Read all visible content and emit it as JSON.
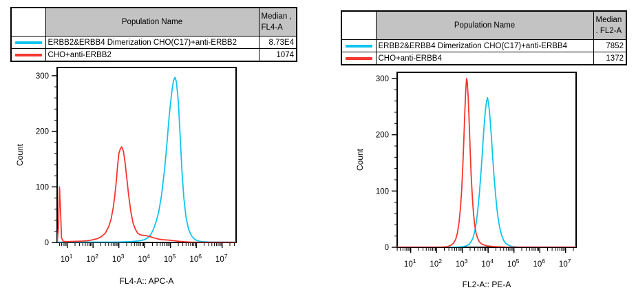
{
  "colors": {
    "cyan": "#0FC5F0",
    "red": "#F5372E",
    "table_header_bg": "#C3C3C3",
    "axis": "#000000"
  },
  "panels": [
    {
      "legend": {
        "header_name": "Population Name",
        "header_median_line1": "Median ,",
        "header_median_line2": "FL4-A",
        "rows": [
          {
            "color": "#0FC5F0",
            "name": "ERBB2&ERBB4 Dimerization CHO(C17)+anti-ERBB2",
            "median": "8.73E4"
          },
          {
            "color": "#F5372E",
            "name": "CHO+anti-ERBB2",
            "median": "1074"
          }
        ]
      }
    },
    {
      "legend": {
        "header_name": "Population Name",
        "header_median_line1": "Median",
        "header_median_line2": ". FL2-A",
        "rows": [
          {
            "color": "#0FC5F0",
            "name": "ERBB2&ERBB4 Dimerization CHO(C17)+anti-ERBB4",
            "median": "7852"
          },
          {
            "color": "#F5372E",
            "name": "CHO+anti-ERBB4",
            "median": "1372"
          }
        ]
      }
    }
  ],
  "chart_data": [
    {
      "type": "line",
      "title": "",
      "xlabel": "FL4-A:: APC-A",
      "ylabel": "Count",
      "x_scale": "log",
      "xlog_range": [
        0.61,
        7.54
      ],
      "ylim": [
        0,
        300
      ],
      "y_ticks": [
        0,
        100,
        200,
        300
      ],
      "y_minor_step": 20,
      "x_major_exponents": [
        1,
        2,
        3,
        4,
        5,
        6,
        7
      ],
      "grid": false,
      "legend_position": "table-above",
      "series": [
        {
          "name": "ERBB2&ERBB4 Dimerization CHO(C17)+anti-ERBB2",
          "data_name": "cyan-dimerization-curve",
          "color": "#0FC5F0",
          "median": "8.73E4",
          "points": [
            [
              4.1,
              0.5
            ],
            [
              1000,
              0.8
            ],
            [
              3000,
              1.5
            ],
            [
              6000,
              3
            ],
            [
              10000,
              5
            ],
            [
              14000,
              9
            ],
            [
              18000,
              16
            ],
            [
              22000,
              24
            ],
            [
              28000,
              38
            ],
            [
              35000,
              55
            ],
            [
              45000,
              85
            ],
            [
              60000,
              135
            ],
            [
              75000,
              185
            ],
            [
              90000,
              230
            ],
            [
              110000,
              268
            ],
            [
              130000,
              291
            ],
            [
              150000,
              297
            ],
            [
              170000,
              289
            ],
            [
              200000,
              255
            ],
            [
              240000,
              185
            ],
            [
              280000,
              125
            ],
            [
              330000,
              80
            ],
            [
              400000,
              45
            ],
            [
              500000,
              24
            ],
            [
              650000,
              12
            ],
            [
              850000,
              6
            ],
            [
              1100000,
              3
            ],
            [
              1600000,
              1.5
            ],
            [
              3000000,
              0.8
            ],
            [
              34000000,
              0.5
            ]
          ]
        },
        {
          "name": "CHO+anti-ERBB2",
          "data_name": "red-control-curve",
          "color": "#F5372E",
          "median": "1074",
          "points": [
            [
              4.1,
              1
            ],
            [
              4.6,
              30
            ],
            [
              5.0,
              100
            ],
            [
              5.5,
              55
            ],
            [
              6.0,
              8
            ],
            [
              7,
              2
            ],
            [
              10,
              1.5
            ],
            [
              20,
              2
            ],
            [
              40,
              2.5
            ],
            [
              70,
              3.5
            ],
            [
              100,
              5
            ],
            [
              150,
              7
            ],
            [
              220,
              11
            ],
            [
              300,
              17
            ],
            [
              400,
              28
            ],
            [
              500,
              42
            ],
            [
              600,
              62
            ],
            [
              700,
              85
            ],
            [
              800,
              112
            ],
            [
              900,
              140
            ],
            [
              1000,
              160
            ],
            [
              1150,
              169
            ],
            [
              1300,
              172
            ],
            [
              1500,
              164
            ],
            [
              1700,
              148
            ],
            [
              2000,
              118
            ],
            [
              2400,
              84
            ],
            [
              2900,
              56
            ],
            [
              3500,
              36
            ],
            [
              4300,
              24
            ],
            [
              5300,
              17
            ],
            [
              6500,
              14
            ],
            [
              8000,
              13
            ],
            [
              10000,
              12.5
            ],
            [
              13000,
              11.5
            ],
            [
              16000,
              10.5
            ],
            [
              20000,
              9
            ],
            [
              26000,
              7.5
            ],
            [
              35000,
              6
            ],
            [
              50000,
              5
            ],
            [
              70000,
              4.5
            ],
            [
              100000,
              4
            ],
            [
              150000,
              3
            ],
            [
              220000,
              2
            ],
            [
              350000,
              1.2
            ],
            [
              600000,
              0.6
            ],
            [
              1200000,
              0.3
            ],
            [
              34000000,
              0.2
            ]
          ]
        }
      ]
    },
    {
      "type": "line",
      "title": "",
      "xlabel": "FL2-A:: PE-A",
      "ylabel": "Count",
      "x_scale": "log",
      "xlog_range": [
        0.475,
        7.41
      ],
      "ylim": [
        0,
        300
      ],
      "y_ticks": [
        0,
        100,
        200,
        300
      ],
      "y_minor_step": 20,
      "x_major_exponents": [
        1,
        2,
        3,
        4,
        5,
        6,
        7
      ],
      "grid": false,
      "legend_position": "table-above",
      "series": [
        {
          "name": "ERBB2&ERBB4 Dimerization CHO(C17)+anti-ERBB4",
          "data_name": "cyan-dimerization-curve",
          "color": "#0FC5F0",
          "median": "7852",
          "points": [
            [
              3,
              0.2
            ],
            [
              600,
              0.3
            ],
            [
              1000,
              1
            ],
            [
              1400,
              2.5
            ],
            [
              1800,
              5
            ],
            [
              2200,
              10
            ],
            [
              2600,
              17
            ],
            [
              3000,
              28
            ],
            [
              3500,
              45
            ],
            [
              4000,
              68
            ],
            [
              4600,
              98
            ],
            [
              5200,
              130
            ],
            [
              5900,
              165
            ],
            [
              6600,
              200
            ],
            [
              7300,
              228
            ],
            [
              8000,
              248
            ],
            [
              8700,
              260
            ],
            [
              9400,
              266
            ],
            [
              10200,
              258
            ],
            [
              11000,
              245
            ],
            [
              12000,
              225
            ],
            [
              13500,
              193
            ],
            [
              15000,
              160
            ],
            [
              17000,
              125
            ],
            [
              19500,
              92
            ],
            [
              22000,
              68
            ],
            [
              25000,
              48
            ],
            [
              29000,
              32
            ],
            [
              34000,
              20
            ],
            [
              40000,
              12
            ],
            [
              48000,
              7
            ],
            [
              60000,
              4
            ],
            [
              75000,
              2
            ],
            [
              100000,
              1
            ],
            [
              150000,
              0.5
            ],
            [
              26000000,
              0.2
            ]
          ]
        },
        {
          "name": "CHO+anti-ERBB4",
          "data_name": "red-control-curve",
          "color": "#F5372E",
          "median": "1372",
          "points": [
            [
              3,
              0.2
            ],
            [
              150,
              0.3
            ],
            [
              250,
              1
            ],
            [
              350,
              3
            ],
            [
              450,
              7
            ],
            [
              550,
              14
            ],
            [
              650,
              26
            ],
            [
              750,
              45
            ],
            [
              850,
              72
            ],
            [
              950,
              105
            ],
            [
              1050,
              148
            ],
            [
              1150,
              195
            ],
            [
              1250,
              240
            ],
            [
              1350,
              278
            ],
            [
              1450,
              300
            ],
            [
              1550,
              295
            ],
            [
              1700,
              265
            ],
            [
              1850,
              220
            ],
            [
              2000,
              175
            ],
            [
              2200,
              128
            ],
            [
              2450,
              88
            ],
            [
              2700,
              60
            ],
            [
              3000,
              40
            ],
            [
              3400,
              25
            ],
            [
              3900,
              16
            ],
            [
              4500,
              10
            ],
            [
              5500,
              6
            ],
            [
              7000,
              4
            ],
            [
              9000,
              2.5
            ],
            [
              12000,
              1.8
            ],
            [
              17000,
              1.2
            ],
            [
              25000,
              0.8
            ],
            [
              45000,
              0.4
            ],
            [
              26000000,
              0.2
            ]
          ]
        }
      ]
    }
  ]
}
